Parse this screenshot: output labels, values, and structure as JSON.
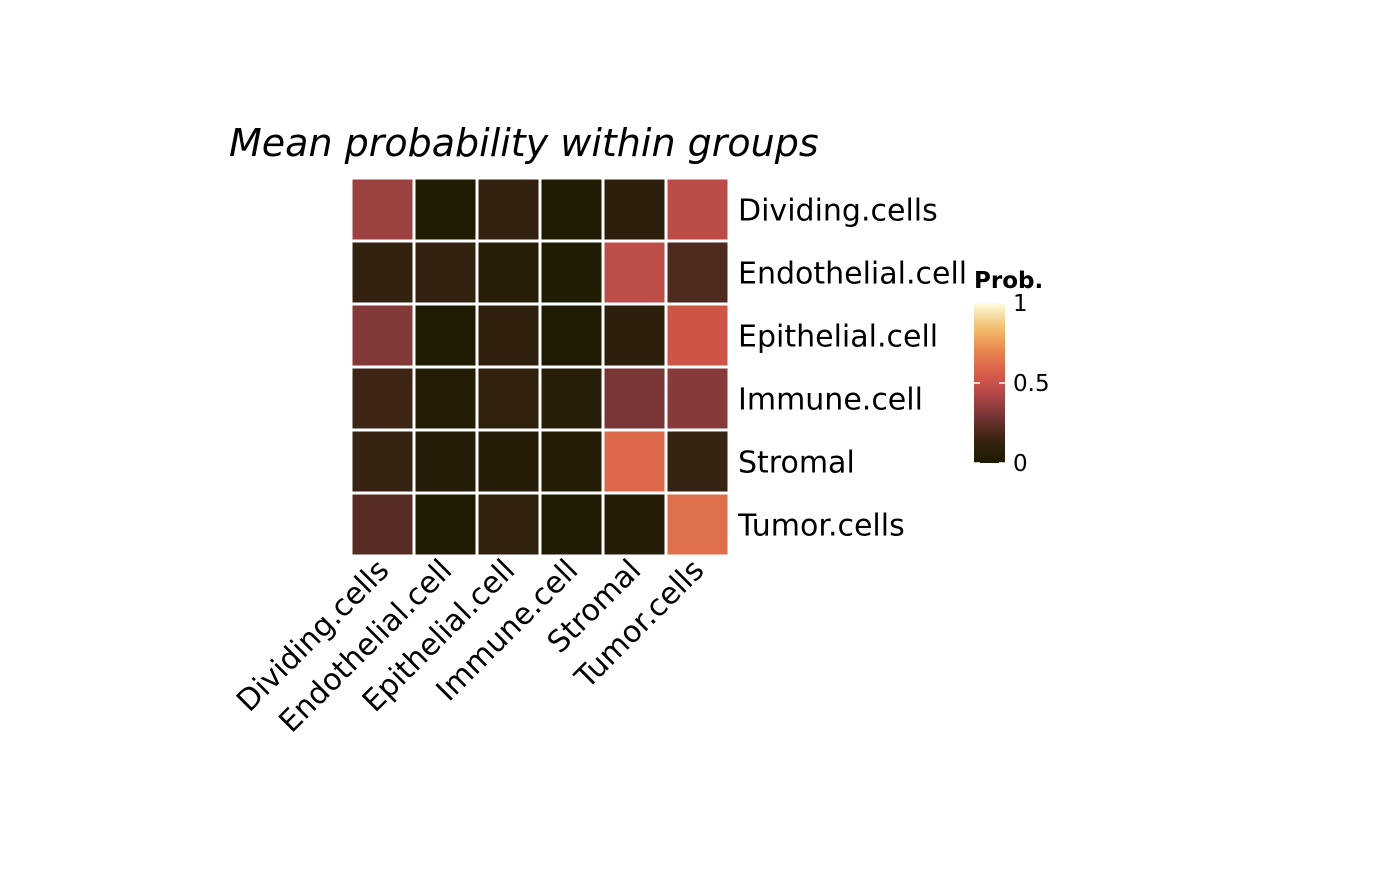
{
  "chart_data": {
    "type": "heatmap",
    "title": "Mean probability within groups",
    "xlabel": "",
    "ylabel": "",
    "columns": [
      "Dividing.cells",
      "Endothelial.cell",
      "Epithelial.cell",
      "Immune.cell",
      "Stromal",
      "Tumor.cells"
    ],
    "rows": [
      "Dividing.cells",
      "Endothelial.cell",
      "Epithelial.cell",
      "Immune.cell",
      "Stromal",
      "Tumor.cells"
    ],
    "values": [
      [
        0.38,
        0.02,
        0.12,
        0.02,
        0.08,
        0.46
      ],
      [
        0.12,
        0.12,
        0.06,
        0.03,
        0.47,
        0.2
      ],
      [
        0.32,
        0.02,
        0.09,
        0.02,
        0.08,
        0.52
      ],
      [
        0.16,
        0.04,
        0.1,
        0.06,
        0.3,
        0.33
      ],
      [
        0.13,
        0.05,
        0.05,
        0.04,
        0.6,
        0.13
      ],
      [
        0.22,
        0.02,
        0.1,
        0.02,
        0.05,
        0.62
      ]
    ],
    "legend": {
      "title": "Prob.",
      "ticks": [
        {
          "value": 0,
          "label": "0"
        },
        {
          "value": 0.5,
          "label": "0.5"
        },
        {
          "value": 1,
          "label": "1"
        }
      ],
      "range": [
        0,
        1
      ],
      "position": "right"
    },
    "colorscale": [
      {
        "stop": 0.0,
        "color": "#1b1a00"
      },
      {
        "stop": 0.15,
        "color": "#3a2414"
      },
      {
        "stop": 0.3,
        "color": "#7a3636"
      },
      {
        "stop": 0.45,
        "color": "#b84a48"
      },
      {
        "stop": 0.55,
        "color": "#d65a48"
      },
      {
        "stop": 0.7,
        "color": "#e8864e"
      },
      {
        "stop": 0.85,
        "color": "#f3c070"
      },
      {
        "stop": 1.0,
        "color": "#fffde0"
      }
    ],
    "grid": false
  }
}
